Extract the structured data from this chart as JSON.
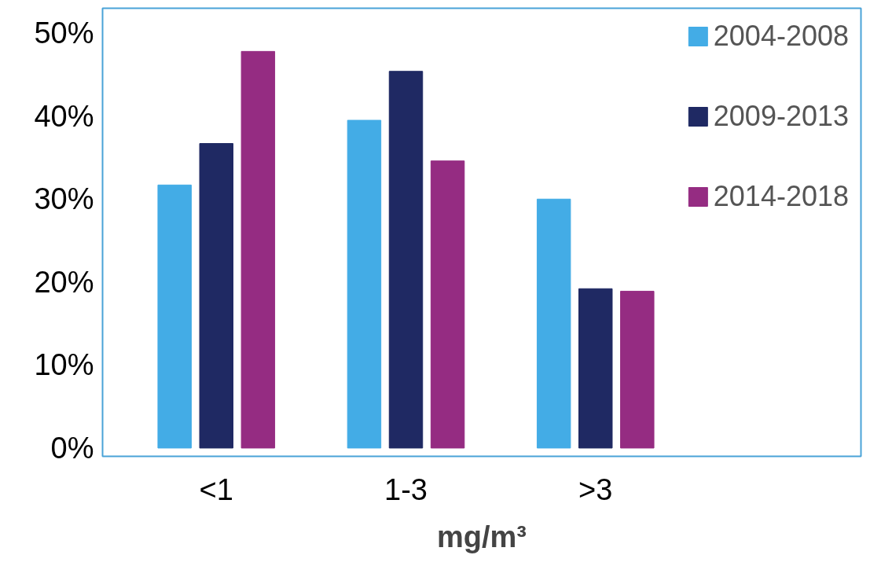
{
  "chart_data": {
    "type": "bar",
    "xlabel": "mg/m³",
    "categories": [
      "<1",
      "1-3",
      ">3"
    ],
    "series": [
      {
        "name": "2004-2008",
        "color": "#43ace6",
        "values": [
          31.7,
          39.5,
          30.0
        ]
      },
      {
        "name": "2009-2013",
        "color": "#1f2963",
        "values": [
          36.7,
          45.4,
          19.2
        ]
      },
      {
        "name": "2014-2018",
        "color": "#952c82",
        "values": [
          47.8,
          34.6,
          18.9
        ]
      }
    ],
    "ylim": [
      -1,
      53
    ],
    "yticks": [
      {
        "value": 0,
        "label": "0%"
      },
      {
        "value": 10,
        "label": "10%"
      },
      {
        "value": 20,
        "label": "20%"
      },
      {
        "value": 30,
        "label": "30%"
      },
      {
        "value": 40,
        "label": "40%"
      },
      {
        "value": 50,
        "label": "50%"
      }
    ],
    "grid": false,
    "legend": "top right"
  }
}
